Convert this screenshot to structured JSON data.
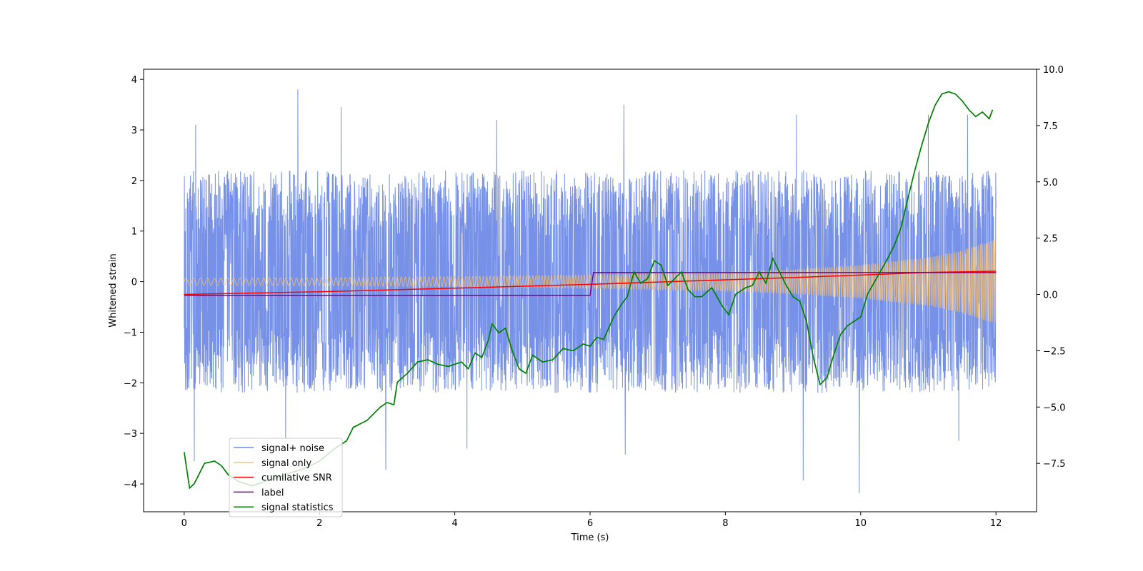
{
  "chart_data": {
    "type": "line",
    "title": "",
    "xlabel": "Time (s)",
    "ylabel": "Whitened strain",
    "y2label": "",
    "xlim": [
      -0.6,
      12.6
    ],
    "ylim": [
      -4.55,
      4.2
    ],
    "y2lim": [
      -9.65,
      10.0
    ],
    "xticks": [
      0,
      2,
      4,
      6,
      8,
      10,
      12
    ],
    "xtick_labels": [
      "0",
      "2",
      "4",
      "6",
      "8",
      "10",
      "12"
    ],
    "yticks": [
      -4,
      -3,
      -2,
      -1,
      0,
      1,
      2,
      3,
      4
    ],
    "ytick_labels": [
      "−4",
      "−3",
      "−2",
      "−1",
      "0",
      "1",
      "2",
      "3",
      "4"
    ],
    "y2ticks": [
      -7.5,
      -5.0,
      -2.5,
      0.0,
      2.5,
      5.0,
      7.5,
      10.0
    ],
    "y2tick_labels": [
      "−7.5",
      "−5.0",
      "−2.5",
      "0.0",
      "2.5",
      "5.0",
      "7.5",
      "10.0"
    ],
    "legend_position": "lower-left",
    "legend": [
      {
        "label": "signal+ noise",
        "color": "#6f8be6"
      },
      {
        "label": "signal only",
        "color": "#ffc266"
      },
      {
        "label": "cumilative SNR",
        "color": "#ff0000"
      },
      {
        "label": "label",
        "color": "#800080"
      },
      {
        "label": "signal statistics",
        "color": "#008000"
      }
    ],
    "series": [
      {
        "name": "signal+ noise",
        "axis": "left",
        "color": "#6f8be6",
        "description": "noisy whitened strain, roughly within -2.5..2.5 with spikes to 3.8 and -4.2",
        "x_range": [
          0,
          12
        ],
        "typical_upper": 2.5,
        "typical_lower": -2.4,
        "spikes": [
          [
            0.17,
            3.1
          ],
          [
            1.68,
            3.8
          ],
          [
            2.32,
            3.45
          ],
          [
            4.62,
            3.2
          ],
          [
            6.5,
            3.5
          ],
          [
            9.05,
            3.3
          ],
          [
            11.0,
            3.3
          ],
          [
            11.58,
            3.3
          ],
          [
            0.15,
            -3.55
          ],
          [
            1.5,
            -3.1
          ],
          [
            2.98,
            -3.72
          ],
          [
            4.18,
            -3.3
          ],
          [
            6.52,
            -3.42
          ],
          [
            9.15,
            -3.93
          ],
          [
            9.98,
            -4.18
          ],
          [
            11.45,
            -3.15
          ]
        ]
      },
      {
        "name": "signal only",
        "axis": "left",
        "color": "#ffc266",
        "description": "chirp oscillation whose envelope grows with time",
        "x_range": [
          0,
          12
        ],
        "envelope": {
          "t": [
            0,
            2,
            4,
            6,
            8,
            9,
            10,
            11,
            11.5,
            12
          ],
          "amp": [
            0.07,
            0.08,
            0.1,
            0.13,
            0.19,
            0.24,
            0.33,
            0.48,
            0.62,
            0.84
          ]
        }
      },
      {
        "name": "cumilative SNR",
        "axis": "right",
        "color": "#ff0000",
        "x": [
          0,
          2,
          4,
          6,
          8,
          9,
          10,
          11,
          12
        ],
        "y": [
          0,
          0.12,
          0.28,
          0.45,
          0.65,
          0.75,
          0.86,
          0.98,
          1.03
        ]
      },
      {
        "name": "label",
        "axis": "left",
        "color": "#800080",
        "x": [
          0,
          6.0,
          6.05,
          12
        ],
        "y": [
          -0.27,
          -0.27,
          0.18,
          0.18
        ]
      },
      {
        "name": "signal statistics",
        "axis": "right",
        "color": "#008000",
        "x": [
          0,
          0.08,
          0.15,
          0.3,
          0.45,
          0.55,
          0.65,
          0.8,
          1.0,
          1.2,
          1.5,
          1.8,
          2.0,
          2.2,
          2.4,
          2.5,
          2.7,
          2.8,
          2.9,
          3.0,
          3.1,
          3.15,
          3.3,
          3.45,
          3.6,
          3.75,
          3.9,
          4.1,
          4.2,
          4.3,
          4.4,
          4.5,
          4.55,
          4.65,
          4.75,
          4.85,
          4.95,
          5.05,
          5.15,
          5.3,
          5.45,
          5.6,
          5.75,
          5.9,
          6.0,
          6.1,
          6.2,
          6.35,
          6.45,
          6.55,
          6.65,
          6.75,
          6.85,
          6.95,
          7.05,
          7.15,
          7.25,
          7.35,
          7.45,
          7.55,
          7.65,
          7.8,
          7.95,
          8.05,
          8.15,
          8.3,
          8.4,
          8.5,
          8.6,
          8.7,
          8.8,
          8.9,
          9.0,
          9.1,
          9.2,
          9.3,
          9.4,
          9.5,
          9.6,
          9.7,
          9.8,
          9.9,
          10.0,
          10.1,
          10.25,
          10.4,
          10.5,
          10.6,
          10.7,
          10.8,
          10.9,
          11.0,
          11.1,
          11.2,
          11.3,
          11.4,
          11.5,
          11.6,
          11.7,
          11.8,
          11.9,
          11.95
        ],
        "y": [
          -7.0,
          -8.6,
          -8.4,
          -7.5,
          -7.4,
          -7.6,
          -8.0,
          -8.3,
          -8.5,
          -8.3,
          -8.0,
          -7.7,
          -7.4,
          -6.9,
          -6.5,
          -5.9,
          -5.6,
          -5.3,
          -5.0,
          -4.8,
          -4.9,
          -3.9,
          -3.5,
          -3.0,
          -2.9,
          -3.1,
          -3.2,
          -3.0,
          -3.3,
          -2.6,
          -2.8,
          -2.0,
          -1.3,
          -1.7,
          -1.5,
          -2.5,
          -3.3,
          -3.5,
          -2.7,
          -3.0,
          -2.9,
          -2.4,
          -2.5,
          -2.2,
          -2.3,
          -1.9,
          -2.0,
          -1.0,
          -0.5,
          -0.1,
          1.0,
          0.5,
          0.7,
          1.5,
          1.3,
          0.4,
          0.7,
          1.0,
          0.2,
          -0.1,
          -0.1,
          0.3,
          -0.5,
          -0.9,
          0.0,
          0.3,
          0.4,
          1.0,
          0.5,
          1.6,
          1.0,
          0.4,
          -0.1,
          -0.3,
          -1.2,
          -2.8,
          -4.0,
          -3.7,
          -2.7,
          -1.8,
          -1.4,
          -1.2,
          -1.0,
          0.0,
          0.8,
          1.6,
          2.2,
          3.0,
          4.3,
          5.5,
          6.6,
          7.6,
          8.4,
          8.9,
          9.0,
          8.9,
          8.6,
          8.2,
          7.9,
          8.1,
          7.8,
          8.2
        ]
      }
    ]
  }
}
